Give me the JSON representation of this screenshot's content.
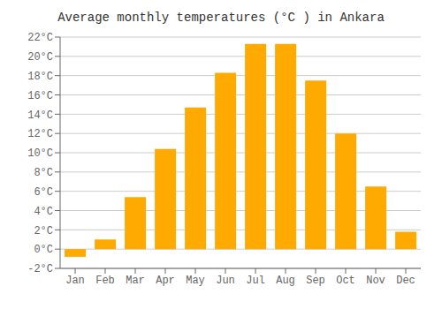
{
  "chart_data": {
    "type": "bar",
    "title": "Average monthly temperatures (°C ) in Ankara",
    "categories": [
      "Jan",
      "Feb",
      "Mar",
      "Apr",
      "May",
      "Jun",
      "Jul",
      "Aug",
      "Sep",
      "Oct",
      "Nov",
      "Dec"
    ],
    "values": [
      -0.8,
      1.0,
      5.4,
      10.4,
      14.7,
      18.3,
      21.3,
      21.3,
      17.5,
      12.0,
      6.5,
      1.8
    ],
    "color": "#FFAA00",
    "ylim": [
      -2,
      22
    ],
    "yticks": [
      {
        "value": -2,
        "label": "-2°C"
      },
      {
        "value": 0,
        "label": "0°C"
      },
      {
        "value": 2,
        "label": "2°C"
      },
      {
        "value": 4,
        "label": "4°C"
      },
      {
        "value": 6,
        "label": "6°C"
      },
      {
        "value": 8,
        "label": "8°C"
      },
      {
        "value": 10,
        "label": "10°C"
      },
      {
        "value": 12,
        "label": "12°C"
      },
      {
        "value": 14,
        "label": "14°C"
      },
      {
        "value": 16,
        "label": "16°C"
      },
      {
        "value": 18,
        "label": "18°C"
      },
      {
        "value": 20,
        "label": "20°C"
      },
      {
        "value": 22,
        "label": "22°C"
      }
    ],
    "grid": true
  }
}
